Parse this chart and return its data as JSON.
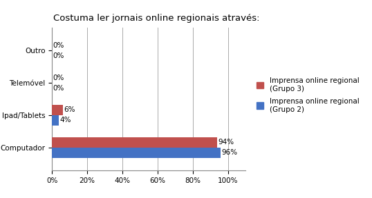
{
  "title": "Costuma ler jornais online regionais através:",
  "categories": [
    "Computador",
    "Ipad/Tablets",
    "Telemóvel",
    "Outro"
  ],
  "grupo3_values": [
    94,
    6,
    0,
    0
  ],
  "grupo2_values": [
    96,
    4,
    0,
    0
  ],
  "grupo3_color": "#C0504D",
  "grupo2_color": "#4472C4",
  "legend_grupo3": "Imprensa online regional\n(Grupo 3)",
  "legend_grupo2": "Imprensa online regional\n(Grupo 2)",
  "xlim": [
    0,
    100
  ],
  "xticks": [
    0,
    20,
    40,
    60,
    80,
    100
  ],
  "xtick_labels": [
    "0%",
    "20%",
    "40%",
    "60%",
    "80%",
    "100%"
  ],
  "bar_height": 0.32,
  "title_fontsize": 9.5,
  "label_fontsize": 7.5,
  "tick_fontsize": 7.5,
  "legend_fontsize": 7.5,
  "background_color": "#FFFFFF",
  "grid_color": "#AAAAAA"
}
